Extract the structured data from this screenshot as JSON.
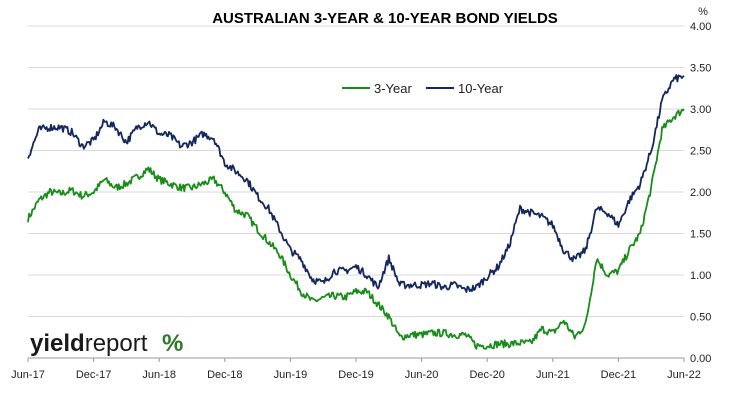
{
  "chart_data": {
    "type": "line",
    "title": "AUSTRALIAN 3-YEAR & 10-YEAR BOND YIELDS",
    "unit": "%",
    "x_ticks": [
      "Jun-17",
      "Dec-17",
      "Jun-18",
      "Dec-18",
      "Jun-19",
      "Dec-19",
      "Jun-20",
      "Dec-20",
      "Jun-21",
      "Dec-21",
      "Jun-22"
    ],
    "y_ticks": [
      "0.00",
      "0.50",
      "1.00",
      "1.50",
      "2.00",
      "2.50",
      "3.00",
      "3.50",
      "4.00"
    ],
    "ylim": [
      0,
      4
    ],
    "xlim": [
      "2017-06",
      "2022-06"
    ],
    "grid": "horizontal",
    "legend_position": "top-center",
    "x": [
      "2017-06",
      "2017-07",
      "2017-08",
      "2017-09",
      "2017-10",
      "2017-11",
      "2017-12",
      "2018-01",
      "2018-02",
      "2018-03",
      "2018-04",
      "2018-05",
      "2018-06",
      "2018-07",
      "2018-08",
      "2018-09",
      "2018-10",
      "2018-11",
      "2018-12",
      "2019-01",
      "2019-02",
      "2019-03",
      "2019-04",
      "2019-05",
      "2019-06",
      "2019-07",
      "2019-08",
      "2019-09",
      "2019-10",
      "2019-11",
      "2019-12",
      "2020-01",
      "2020-02",
      "2020-03",
      "2020-04",
      "2020-05",
      "2020-06",
      "2020-07",
      "2020-08",
      "2020-09",
      "2020-10",
      "2020-11",
      "2020-12",
      "2021-01",
      "2021-02",
      "2021-03",
      "2021-04",
      "2021-05",
      "2021-06",
      "2021-07",
      "2021-08",
      "2021-09",
      "2021-10",
      "2021-11",
      "2021-12",
      "2022-01",
      "2022-02",
      "2022-03",
      "2022-04",
      "2022-05",
      "2022-06"
    ],
    "series": [
      {
        "name": "3-Year",
        "color": "#1a8c1a",
        "values": [
          1.68,
          1.9,
          2.0,
          1.98,
          2.02,
          1.95,
          2.0,
          2.15,
          2.05,
          2.1,
          2.18,
          2.28,
          2.15,
          2.1,
          2.05,
          2.05,
          2.1,
          2.15,
          2.0,
          1.78,
          1.72,
          1.55,
          1.4,
          1.25,
          1.0,
          0.8,
          0.68,
          0.72,
          0.75,
          0.73,
          0.8,
          0.8,
          0.65,
          0.5,
          0.25,
          0.28,
          0.28,
          0.3,
          0.3,
          0.28,
          0.28,
          0.15,
          0.15,
          0.17,
          0.17,
          0.18,
          0.18,
          0.35,
          0.3,
          0.45,
          0.25,
          0.4,
          1.2,
          1.0,
          1.05,
          1.3,
          1.5,
          2.05,
          2.75,
          2.9,
          3.0
        ]
      },
      {
        "name": "10-Year",
        "color": "#14275e",
        "values": [
          2.42,
          2.75,
          2.78,
          2.78,
          2.72,
          2.55,
          2.62,
          2.85,
          2.78,
          2.6,
          2.78,
          2.85,
          2.7,
          2.68,
          2.55,
          2.6,
          2.7,
          2.65,
          2.35,
          2.25,
          2.15,
          1.95,
          1.8,
          1.55,
          1.3,
          1.18,
          0.95,
          0.9,
          1.05,
          1.05,
          1.1,
          1.0,
          0.85,
          1.2,
          0.88,
          0.88,
          0.88,
          0.9,
          0.85,
          0.88,
          0.82,
          0.85,
          0.98,
          1.1,
          1.35,
          1.8,
          1.75,
          1.7,
          1.6,
          1.3,
          1.18,
          1.3,
          1.8,
          1.75,
          1.6,
          1.9,
          2.1,
          2.5,
          3.1,
          3.35,
          3.4
        ]
      }
    ]
  },
  "logo": {
    "part1": "yield",
    "part2": "report",
    "symbol": "%"
  }
}
